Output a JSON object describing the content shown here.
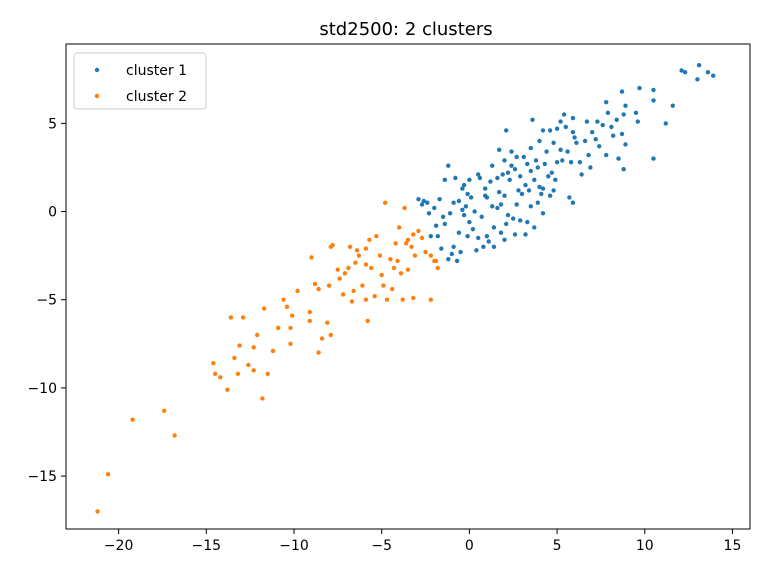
{
  "chart_data": {
    "type": "scatter",
    "title": "std2500: 2 clusters",
    "xlabel": "",
    "ylabel": "",
    "xlim": [
      -23,
      16
    ],
    "ylim": [
      -18,
      9.5
    ],
    "xticks": [
      -20,
      -15,
      -10,
      -5,
      0,
      5,
      10,
      15
    ],
    "yticks": [
      -15,
      -10,
      -5,
      0,
      5
    ],
    "grid": false,
    "legend_position": "top-left",
    "series": [
      {
        "name": "cluster 1",
        "color": "#1f77b4",
        "points": [
          [
            13.1,
            8.3
          ],
          [
            13.6,
            7.9
          ],
          [
            13.9,
            7.7
          ],
          [
            13.0,
            7.5
          ],
          [
            12.1,
            8.0
          ],
          [
            12.3,
            7.9
          ],
          [
            11.6,
            6.0
          ],
          [
            11.2,
            5.0
          ],
          [
            10.5,
            6.9
          ],
          [
            10.5,
            6.3
          ],
          [
            9.6,
            5.1
          ],
          [
            9.7,
            7.0
          ],
          [
            8.9,
            6.0
          ],
          [
            8.7,
            6.8
          ],
          [
            8.8,
            5.5
          ],
          [
            8.4,
            5.2
          ],
          [
            8.7,
            4.4
          ],
          [
            8.9,
            3.8
          ],
          [
            7.8,
            6.2
          ],
          [
            8.2,
            4.3
          ],
          [
            8.5,
            3.0
          ],
          [
            8.8,
            2.4
          ],
          [
            7.3,
            5.1
          ],
          [
            7.6,
            4.9
          ],
          [
            7.0,
            4.5
          ],
          [
            7.4,
            3.7
          ],
          [
            7.8,
            3.2
          ],
          [
            6.8,
            3.2
          ],
          [
            6.9,
            2.5
          ],
          [
            6.4,
            2.1
          ],
          [
            5.9,
            4.5
          ],
          [
            6.1,
            3.9
          ],
          [
            5.4,
            5.5
          ],
          [
            5.9,
            5.3
          ],
          [
            5.5,
            4.8
          ],
          [
            5.0,
            4.7
          ],
          [
            4.6,
            4.6
          ],
          [
            4.2,
            4.6
          ],
          [
            3.6,
            5.2
          ],
          [
            5.2,
            3.5
          ],
          [
            5.6,
            3.4
          ],
          [
            5.8,
            2.8
          ],
          [
            5.0,
            2.8
          ],
          [
            4.7,
            2.2
          ],
          [
            4.3,
            2.7
          ],
          [
            3.9,
            2.5
          ],
          [
            3.5,
            3.6
          ],
          [
            3.1,
            3.1
          ],
          [
            3.5,
            2.3
          ],
          [
            3.7,
            1.8
          ],
          [
            4.0,
            1.4
          ],
          [
            3.2,
            1.5
          ],
          [
            2.8,
            1.2
          ],
          [
            2.4,
            2.6
          ],
          [
            2.0,
            2.9
          ],
          [
            1.7,
            3.5
          ],
          [
            2.4,
            3.4
          ],
          [
            2.1,
            4.6
          ],
          [
            1.3,
            2.6
          ],
          [
            1.6,
            1.9
          ],
          [
            1.2,
            1.7
          ],
          [
            0.9,
            1.3
          ],
          [
            0.6,
            1.9
          ],
          [
            0.0,
            1.8
          ],
          [
            0.1,
            0.8
          ],
          [
            -0.4,
            1.3
          ],
          [
            -0.1,
            1.0
          ],
          [
            -1.4,
            1.8
          ],
          [
            -1.2,
            2.6
          ],
          [
            -0.6,
            0.6
          ],
          [
            -0.9,
            0.5
          ],
          [
            -0.4,
            0.1
          ],
          [
            -1.1,
            -0.1
          ],
          [
            -1.7,
            0.7
          ],
          [
            -2.0,
            0.2
          ],
          [
            -2.6,
            0.6
          ],
          [
            -2.3,
            -0.1
          ],
          [
            -2.9,
            0.7
          ],
          [
            -2.7,
            0.4
          ],
          [
            -1.5,
            -0.3
          ],
          [
            -1.4,
            -0.7
          ],
          [
            -1.8,
            -1.4
          ],
          [
            -2.2,
            -1.4
          ],
          [
            -1.6,
            -2.1
          ],
          [
            -0.9,
            -2.0
          ],
          [
            -0.5,
            -2.3
          ],
          [
            -0.7,
            -2.8
          ],
          [
            -1.2,
            -2.7
          ],
          [
            -0.6,
            -1.2
          ],
          [
            -0.1,
            -1.4
          ],
          [
            0.5,
            -1.5
          ],
          [
            0.8,
            -2.0
          ],
          [
            0.4,
            -2.2
          ],
          [
            1.0,
            -1.4
          ],
          [
            1.4,
            -0.9
          ],
          [
            1.8,
            -1.2
          ],
          [
            2.0,
            -1.6
          ],
          [
            2.1,
            -0.7
          ],
          [
            2.5,
            -0.4
          ],
          [
            2.9,
            -0.5
          ],
          [
            3.3,
            -0.6
          ],
          [
            3.7,
            -0.9
          ],
          [
            3.2,
            -1.3
          ],
          [
            2.6,
            -1.3
          ],
          [
            3.5,
            0.3
          ],
          [
            3.9,
            0.5
          ],
          [
            4.2,
            -0.1
          ],
          [
            5.7,
            0.8
          ],
          [
            5.9,
            0.5
          ],
          [
            4.6,
            0.9
          ],
          [
            4.2,
            1.3
          ],
          [
            2.7,
            0.4
          ],
          [
            1.8,
            0.4
          ],
          [
            1.3,
            0.3
          ],
          [
            0.7,
            -0.3
          ],
          [
            0.3,
            0.0
          ],
          [
            0.0,
            -0.6
          ],
          [
            -0.3,
            -0.2
          ],
          [
            1.0,
            0.8
          ],
          [
            1.7,
            1.1
          ],
          [
            2.3,
            1.8
          ],
          [
            2.9,
            2.0
          ],
          [
            3.3,
            2.7
          ],
          [
            4.4,
            3.4
          ],
          [
            6.6,
            4.0
          ],
          [
            7.9,
            5.6
          ],
          [
            10.5,
            3.0
          ],
          [
            9.5,
            5.6
          ],
          [
            4.9,
            1.8
          ],
          [
            2.2,
            2.2
          ],
          [
            0.5,
            2.1
          ],
          [
            -0.8,
            1.9
          ],
          [
            -1.9,
            -0.8
          ],
          [
            -1.0,
            -2.4
          ],
          [
            1.4,
            -2.0
          ],
          [
            2.0,
            0.9
          ],
          [
            3.0,
            1.0
          ],
          [
            4.5,
            2.0
          ],
          [
            5.3,
            2.9
          ],
          [
            6.3,
            2.8
          ],
          [
            7.2,
            4.1
          ],
          [
            8.1,
            4.8
          ],
          [
            6.7,
            5.1
          ],
          [
            5.2,
            5.1
          ],
          [
            4.0,
            4.0
          ],
          [
            2.7,
            3.1
          ],
          [
            1.9,
            2.1
          ],
          [
            0.9,
            0.9
          ],
          [
            -0.2,
            0.3
          ],
          [
            -2.4,
            0.5
          ],
          [
            0.2,
            -1.0
          ],
          [
            2.2,
            -0.2
          ],
          [
            3.8,
            2.9
          ],
          [
            4.8,
            3.9
          ],
          [
            6.0,
            4.2
          ],
          [
            1.1,
            -1.7
          ],
          [
            -0.3,
            1.5
          ],
          [
            2.6,
            2.4
          ],
          [
            1.6,
            0.2
          ],
          [
            3.4,
            1.2
          ],
          [
            4.1,
            1.0
          ],
          [
            4.8,
            1.2
          ]
        ]
      },
      {
        "name": "cluster 2",
        "color": "#ff7f0e",
        "points": [
          [
            -21.2,
            -17.0
          ],
          [
            -20.6,
            -14.9
          ],
          [
            -19.2,
            -11.8
          ],
          [
            -17.4,
            -11.3
          ],
          [
            -16.8,
            -12.7
          ],
          [
            -14.6,
            -8.6
          ],
          [
            -14.5,
            -9.2
          ],
          [
            -14.2,
            -9.4
          ],
          [
            -13.8,
            -10.1
          ],
          [
            -13.4,
            -8.3
          ],
          [
            -13.2,
            -9.2
          ],
          [
            -13.1,
            -7.6
          ],
          [
            -13.6,
            -6.0
          ],
          [
            -12.9,
            -6.0
          ],
          [
            -12.6,
            -8.7
          ],
          [
            -12.3,
            -9.0
          ],
          [
            -12.1,
            -7.0
          ],
          [
            -12.3,
            -7.7
          ],
          [
            -11.7,
            -5.5
          ],
          [
            -11.8,
            -10.6
          ],
          [
            -11.5,
            -9.2
          ],
          [
            -11.2,
            -7.9
          ],
          [
            -10.9,
            -6.6
          ],
          [
            -10.6,
            -5.0
          ],
          [
            -10.4,
            -5.4
          ],
          [
            -10.2,
            -6.6
          ],
          [
            -10.2,
            -7.5
          ],
          [
            -10.1,
            -5.9
          ],
          [
            -9.8,
            -4.5
          ],
          [
            -9.1,
            -5.7
          ],
          [
            -9.1,
            -6.2
          ],
          [
            -8.8,
            -4.1
          ],
          [
            -8.6,
            -4.4
          ],
          [
            -9.0,
            -2.6
          ],
          [
            -8.6,
            -8.0
          ],
          [
            -8.4,
            -7.2
          ],
          [
            -8.1,
            -6.3
          ],
          [
            -8.0,
            -4.2
          ],
          [
            -7.9,
            -7.0
          ],
          [
            -7.8,
            -1.9
          ],
          [
            -7.9,
            -2.0
          ],
          [
            -7.5,
            -3.3
          ],
          [
            -7.4,
            -3.8
          ],
          [
            -7.2,
            -4.7
          ],
          [
            -7.1,
            -3.5
          ],
          [
            -6.9,
            -3.2
          ],
          [
            -6.8,
            -2.0
          ],
          [
            -6.7,
            -5.1
          ],
          [
            -6.6,
            -4.5
          ],
          [
            -6.4,
            -2.2
          ],
          [
            -6.3,
            -2.5
          ],
          [
            -6.1,
            -4.2
          ],
          [
            -5.9,
            -3.0
          ],
          [
            -5.9,
            -5.0
          ],
          [
            -5.8,
            -6.2
          ],
          [
            -5.9,
            -2.1
          ],
          [
            -5.7,
            -1.6
          ],
          [
            -5.6,
            -3.2
          ],
          [
            -5.3,
            -1.4
          ],
          [
            -5.1,
            -2.5
          ],
          [
            -5.0,
            -3.6
          ],
          [
            -4.9,
            -4.2
          ],
          [
            -4.8,
            0.5
          ],
          [
            -4.7,
            -5.0
          ],
          [
            -4.5,
            -2.7
          ],
          [
            -4.4,
            -4.4
          ],
          [
            -4.2,
            -1.8
          ],
          [
            -4.1,
            -2.8
          ],
          [
            -4.0,
            -0.9
          ],
          [
            -3.9,
            -3.5
          ],
          [
            -3.8,
            -5.0
          ],
          [
            -3.7,
            0.2
          ],
          [
            -3.5,
            -1.6
          ],
          [
            -3.5,
            -3.3
          ],
          [
            -3.3,
            -2.0
          ],
          [
            -3.2,
            -1.3
          ],
          [
            -3.1,
            -2.5
          ],
          [
            -3.2,
            -4.9
          ],
          [
            -2.9,
            -1.1
          ],
          [
            -2.7,
            -1.5
          ],
          [
            -2.5,
            -2.3
          ],
          [
            -2.2,
            -5.0
          ],
          [
            -2.2,
            -2.5
          ],
          [
            -2.0,
            -2.8
          ],
          [
            -1.9,
            -2.8
          ],
          [
            -1.8,
            -3.2
          ],
          [
            -3.6,
            -1.8
          ],
          [
            -4.3,
            -3.2
          ],
          [
            -5.4,
            -4.8
          ],
          [
            -6.5,
            -2.9
          ]
        ]
      }
    ]
  }
}
